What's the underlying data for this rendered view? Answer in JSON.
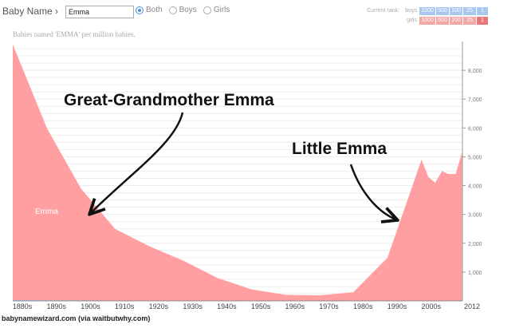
{
  "header": {
    "app_label": "Baby Name",
    "search_value": "Emma",
    "gender_options": [
      {
        "label": "Both",
        "selected": true
      },
      {
        "label": "Boys",
        "selected": false
      },
      {
        "label": "Girls",
        "selected": false
      }
    ],
    "current_rank_label": "Current rank:",
    "rank_rows": [
      {
        "label": "boys",
        "cells": [
          "1000",
          "500",
          "100",
          "25",
          "1"
        ],
        "active": [
          false,
          false,
          false,
          false,
          false
        ]
      },
      {
        "label": "girls",
        "cells": [
          "1000",
          "500",
          "100",
          "25",
          "1"
        ],
        "active": [
          false,
          false,
          false,
          false,
          true
        ]
      }
    ]
  },
  "subtitle": "Babies named 'EMMA' per million babies.",
  "footer": "babynamewizard.com (via waitbutwhy.com)",
  "colors": {
    "girls_area": "#ff9fa2",
    "boys_area": "#a9c8ef",
    "accent": "#4a8ee0"
  },
  "chart_data": {
    "type": "area",
    "title": "",
    "xlabel": "",
    "ylabel": "",
    "x_tick_labels": [
      "1880s",
      "1890s",
      "1900s",
      "1910s",
      "1920s",
      "1930s",
      "1940s",
      "1950s",
      "1960s",
      "1970s",
      "1980s",
      "1990s",
      "2000s",
      "2012"
    ],
    "ylim": [
      0,
      9000
    ],
    "y_ticks": [
      1000,
      2000,
      3000,
      4000,
      5000,
      6000,
      7000,
      8000
    ],
    "y_tick_labels": [
      "1,000",
      "2,000",
      "3,000",
      "4,000",
      "5,000",
      "6,000",
      "7,000",
      "8,000"
    ],
    "grid": true,
    "series": [
      {
        "name": "",
        "x": [
          1880,
          1890,
          1900,
          1910,
          1920,
          1930,
          1940,
          1950,
          1960,
          1970,
          1980,
          1990,
          2000,
          2002,
          2004,
          2006,
          2008,
          2010,
          2012
        ],
        "values": [
          8900,
          6000,
          3900,
          2500,
          1900,
          1400,
          800,
          400,
          210,
          190,
          300,
          1500,
          4900,
          4300,
          4100,
          4500,
          4400,
          4400,
          5200
        ]
      },
      {
        "name": "",
        "x": [
          1880,
          1890,
          1900,
          1910,
          1920,
          1930,
          1940,
          1950,
          1960,
          1970,
          1980,
          1990,
          2000,
          2012
        ],
        "values": [
          30,
          25,
          20,
          10,
          5,
          0,
          0,
          0,
          0,
          0,
          0,
          0,
          0,
          0
        ]
      }
    ],
    "series_label": "Emma",
    "annotations": [
      {
        "text": "Great-Grandmother Emma",
        "x": 1902.5,
        "y": 3000
      },
      {
        "text": "Little Emma",
        "x": 1993,
        "y": 2800
      }
    ]
  }
}
